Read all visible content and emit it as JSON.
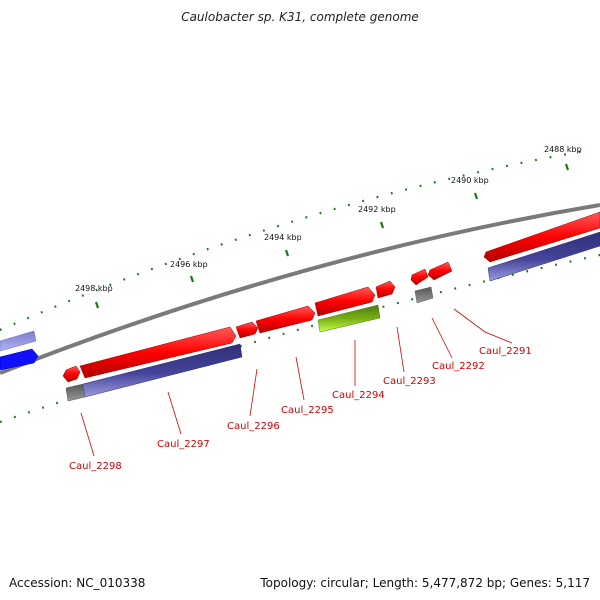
{
  "title": "Caulobacter sp. K31, complete genome",
  "footer": {
    "accession": "Accession: NC_010338",
    "stats": "Topology: circular; Length: 5,477,872 bp; Genes: 5,117"
  },
  "kbp_labels": [
    "2488 kbp",
    "2490 kbp",
    "2492 kbp",
    "2494 kbp",
    "2496 kbp",
    "2498 kbp"
  ],
  "gene_labels": [
    "Caul_2291",
    "Caul_2292",
    "Caul_2293",
    "Caul_2294",
    "Caul_2295",
    "Caul_2296",
    "Caul_2297",
    "Caul_2298"
  ],
  "colors": {
    "backbone": "#7a7a7a",
    "cds": "#ff0000",
    "cds_dark": "#b80000",
    "gene": "#3c3c8c",
    "gene_light": "#8f8fd6",
    "trna": "#8ed400",
    "trna_dark": "#4f7a10",
    "tick": "#1a7a1a",
    "label": "#d40000",
    "pseudo": "#707070",
    "blue_gene": "#1010ff"
  }
}
